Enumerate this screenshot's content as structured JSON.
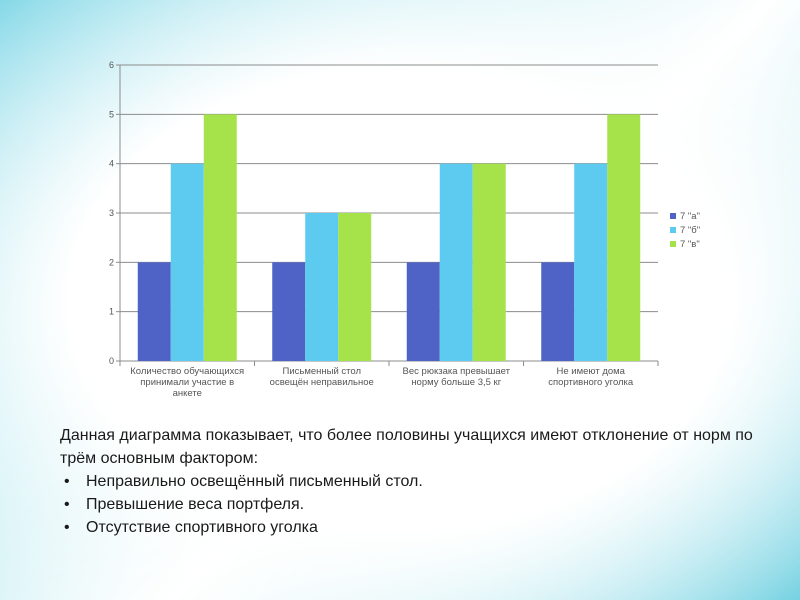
{
  "colors": {
    "series_a": "#4f63c7",
    "series_b": "#5dcbef",
    "series_c": "#a6e24a"
  },
  "chart_data": {
    "type": "bar",
    "categories": [
      [
        "Количество обучающихся",
        "принимали участие в",
        "анкете"
      ],
      [
        "Письменный стол",
        "освещён неправильное"
      ],
      [
        "Вес рюкзака превышает",
        "норму больше 3,5 кг"
      ],
      [
        "Не имеют дома",
        "спортивного уголка"
      ]
    ],
    "series": [
      {
        "name": "7 \"а\"",
        "values": [
          2,
          2,
          2,
          2
        ]
      },
      {
        "name": "7 \"б\"",
        "values": [
          4,
          3,
          4,
          4
        ]
      },
      {
        "name": "7 \"в\"",
        "values": [
          5,
          3,
          4,
          5
        ]
      }
    ],
    "ylim": [
      0,
      6
    ],
    "yticks": [
      "0",
      "1",
      "2",
      "3",
      "4",
      "5",
      "6"
    ],
    "grid": true,
    "legend": "right"
  },
  "text": {
    "intro": "Данная диаграмма  показывает, что более половины учащихся имеют отклонение от норм по трём основным фактором:",
    "bullets": [
      "Неправильно освещённый письменный стол.",
      "Превышение веса портфеля.",
      "Отсутствие спортивного уголка"
    ]
  }
}
